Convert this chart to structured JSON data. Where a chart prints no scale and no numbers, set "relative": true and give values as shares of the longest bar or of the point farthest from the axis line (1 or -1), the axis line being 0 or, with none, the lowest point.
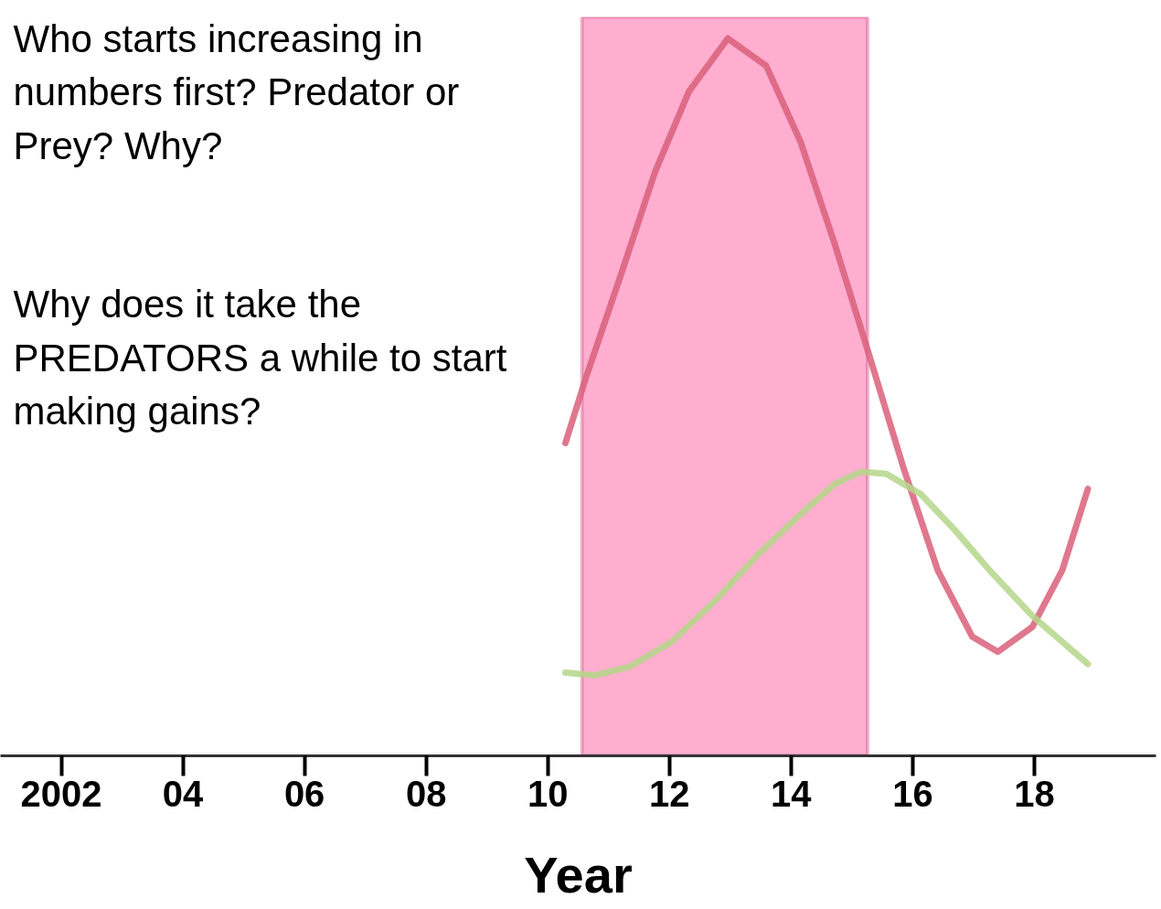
{
  "chart_data": {
    "type": "line",
    "relative": true,
    "xlabel": "Year",
    "xlim": [
      2001,
      2020
    ],
    "xticks": [
      2002,
      {
        "value": 2004,
        "label": "04"
      },
      {
        "value": 2006,
        "label": "06"
      },
      {
        "value": 2008,
        "label": "08"
      },
      {
        "value": 2010,
        "label": "10"
      },
      {
        "value": 2012,
        "label": "12"
      },
      {
        "value": 2014,
        "label": "14"
      },
      {
        "value": 2016,
        "label": "16"
      },
      {
        "value": 2018,
        "label": "18"
      }
    ],
    "series": [
      {
        "color": "#d9607a",
        "x": [
          2010.29,
          2010.63,
          2011.2,
          2011.76,
          2012.32,
          2012.96,
          2013.59,
          2014.16,
          2014.72,
          2015.29,
          2015.85,
          2016.41,
          2016.98,
          2017.4,
          2017.97,
          2018.46,
          2018.88
        ],
        "values": [
          0.436,
          0.528,
          0.67,
          0.813,
          0.926,
          1,
          0.962,
          0.855,
          0.713,
          0.557,
          0.401,
          0.259,
          0.166,
          0.145,
          0.18,
          0.259,
          0.372
        ]
      },
      {
        "color": "#b5d68a",
        "x": [
          2010.29,
          2010.77,
          2011.34,
          2012.04,
          2012.75,
          2013.45,
          2014.16,
          2014.72,
          2015.15,
          2015.57,
          2016.13,
          2016.69,
          2017.26,
          2017.97,
          2018.88
        ],
        "values": [
          0.116,
          0.112,
          0.124,
          0.159,
          0.216,
          0.28,
          0.337,
          0.379,
          0.396,
          0.393,
          0.365,
          0.315,
          0.259,
          0.195,
          0.128
        ]
      }
    ],
    "bands": [
      {
        "axis": "x",
        "from": 2010.56,
        "to": 2015.26,
        "color": "#ffaed0"
      }
    ],
    "annotations": [
      "Who starts increasing in numbers first?  Predator or Prey?  Why?",
      "Why does it take the PREDATORS a while to start making gains?"
    ],
    "grid": false,
    "marker": "none",
    "line_style": "solid"
  }
}
